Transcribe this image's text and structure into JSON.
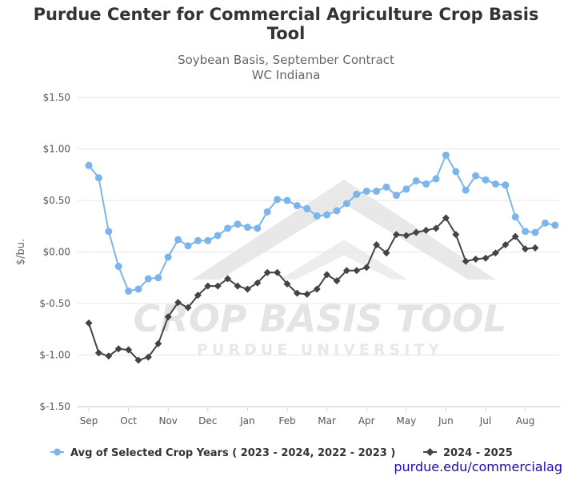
{
  "chart_data": {
    "type": "line",
    "title": [
      "Purdue Center for Commercial Agriculture Crop Basis",
      "Tool"
    ],
    "subtitle": [
      "Soybean Basis, September Contract",
      "WC Indiana"
    ],
    "ylabel": "$/bu.",
    "ylim": [
      -1.5,
      1.5
    ],
    "yticks": [
      1.5,
      1.0,
      0.5,
      0.0,
      -0.5,
      -1.0,
      -1.5
    ],
    "ytick_labels": [
      "$1.50",
      "$1.00",
      "$0.50",
      "$0.00",
      "$-0.50",
      "$-1.00",
      "$-1.50"
    ],
    "xticks": [
      "Sep",
      "Oct",
      "Nov",
      "Dec",
      "Jan",
      "Feb",
      "Mar",
      "Apr",
      "May",
      "Jun",
      "Jul",
      "Aug"
    ],
    "points_per_month": 4,
    "grid": "horizontal",
    "legend_position": "bottom",
    "series": [
      {
        "name": "Avg of Selected Crop Years ( 2023 - 2024, 2022 - 2023 )",
        "color": "#7cb5ec",
        "marker": "circle",
        "values": [
          0.84,
          0.72,
          0.2,
          -0.14,
          -0.38,
          -0.36,
          -0.26,
          -0.25,
          -0.05,
          0.12,
          0.06,
          0.11,
          0.11,
          0.16,
          0.23,
          0.27,
          0.24,
          0.23,
          0.39,
          0.51,
          0.5,
          0.45,
          0.42,
          0.35,
          0.36,
          0.4,
          0.47,
          0.56,
          0.59,
          0.59,
          0.63,
          0.55,
          0.61,
          0.69,
          0.66,
          0.71,
          0.94,
          0.78,
          0.6,
          0.74,
          0.7,
          0.66,
          0.65,
          0.34,
          0.2,
          0.19,
          0.28,
          0.26
        ]
      },
      {
        "name": "2024 - 2025",
        "color": "#434348",
        "marker": "diamond",
        "values": [
          -0.69,
          -0.98,
          -1.01,
          -0.94,
          -0.95,
          -1.05,
          -1.02,
          -0.89,
          -0.63,
          -0.49,
          -0.54,
          -0.42,
          -0.33,
          -0.33,
          -0.26,
          -0.33,
          -0.36,
          -0.3,
          -0.2,
          -0.2,
          -0.31,
          -0.4,
          -0.41,
          -0.36,
          -0.22,
          -0.28,
          -0.18,
          -0.18,
          -0.15,
          0.07,
          -0.01,
          0.17,
          0.16,
          0.19,
          0.21,
          0.23,
          0.33,
          0.17,
          -0.09,
          -0.07,
          -0.06,
          -0.01,
          0.07,
          0.15,
          0.03,
          0.04
        ]
      }
    ]
  },
  "watermark": {
    "main_text": "CROP BASIS TOOL",
    "sub_text": "PURDUE UNIVERSITY"
  },
  "credit": "purdue.edu/commercialag",
  "colors": {
    "avg_series": "#7cb5ec",
    "current_series": "#434348",
    "gridline": "#e6e6e6",
    "credit_link": "#1a0dab"
  }
}
